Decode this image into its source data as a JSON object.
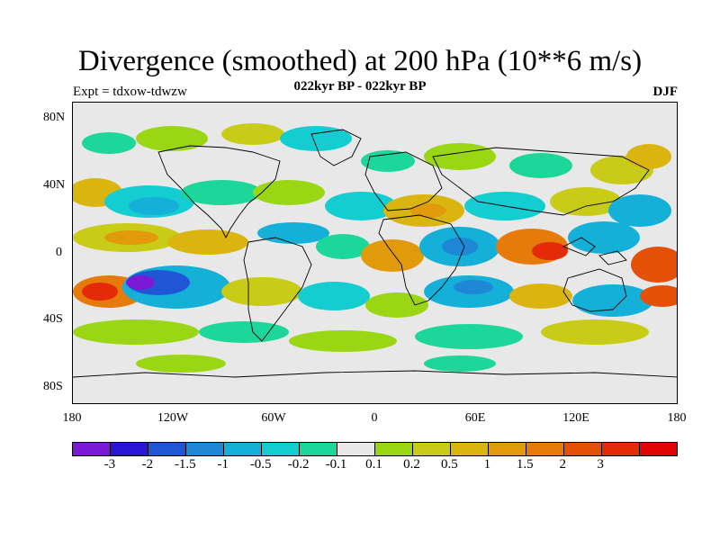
{
  "title": "Divergence (smoothed) at 200 hPa (10**6 m/s)",
  "subtitle": "022kyr BP - 022kyr BP",
  "experiment": "Expt = tdxow-tdwzw",
  "season": "DJF",
  "map": {
    "background": "#e8e8e8",
    "lat_ticks": [
      "80N",
      "40N",
      "0",
      "40S",
      "80S"
    ],
    "lon_ticks": [
      "180",
      "120W",
      "60W",
      "0",
      "60E",
      "120E",
      "180"
    ]
  },
  "colorbar": {
    "colors": [
      "#7a1ad6",
      "#2b16d6",
      "#1e56d6",
      "#1e88d6",
      "#14b0d8",
      "#14cdd0",
      "#1cd69a",
      "#e8e8e8",
      "#9ad614",
      "#c8cc16",
      "#dab510",
      "#e09a0a",
      "#e67a0a",
      "#e45008",
      "#e42a08",
      "#e00404"
    ],
    "labels": [
      "-3",
      "-2",
      "-1.5",
      "-1",
      "-0.5",
      "-0.2",
      "-0.1",
      "0.1",
      "0.2",
      "0.5",
      "1",
      "1.5",
      "2",
      "3"
    ]
  }
}
